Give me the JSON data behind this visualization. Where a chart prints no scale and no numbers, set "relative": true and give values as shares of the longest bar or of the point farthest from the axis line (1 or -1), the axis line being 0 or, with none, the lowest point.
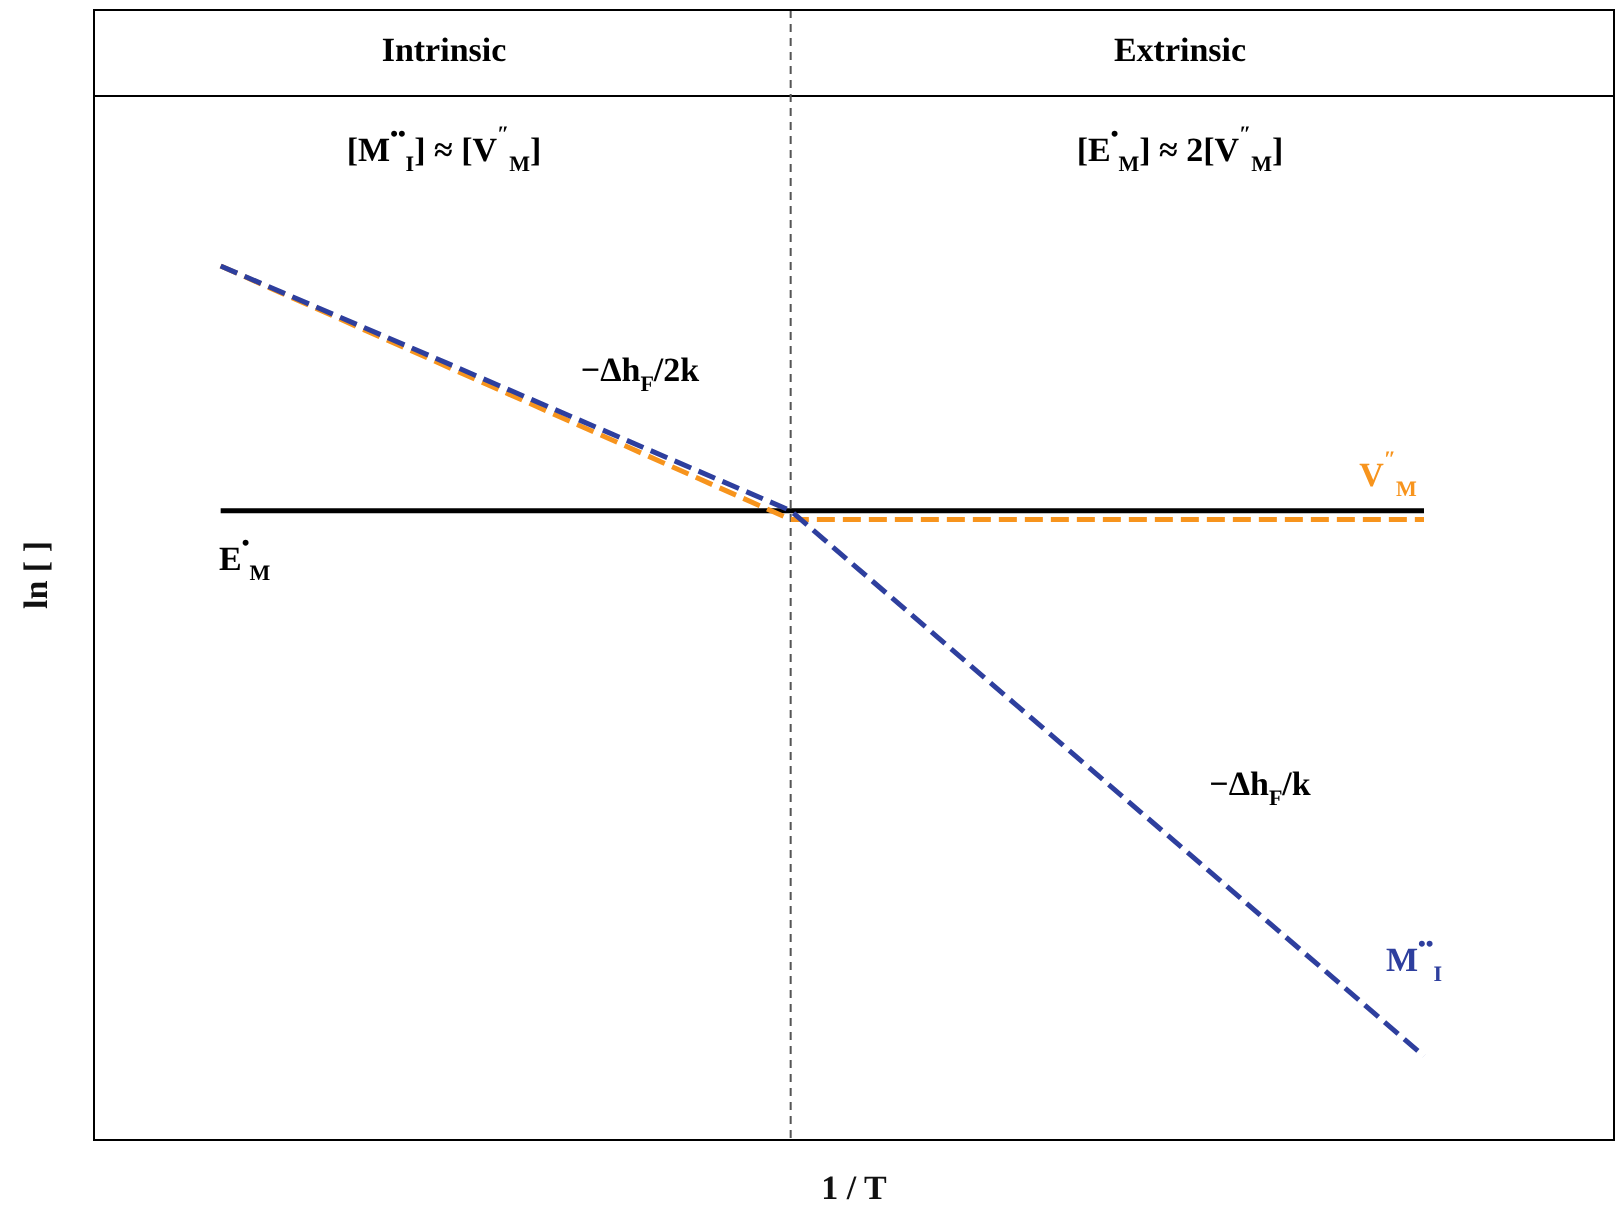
{
  "chart_data": {
    "type": "line",
    "relative": true,
    "xlabel": "1 / T",
    "ylabel": "ln [ ]",
    "tick_labels": false,
    "grid": false,
    "legend": false,
    "marker": "none",
    "categories": [
      null,
      null,
      null,
      null,
      null,
      null,
      null,
      null,
      null,
      null,
      null,
      null,
      null,
      null,
      null,
      null,
      null,
      null,
      null,
      null,
      null,
      null,
      null,
      null,
      null
    ],
    "series": [
      {
        "name": "E$^{•}$$_{M}$",
        "color": "#000000",
        "line_style": "solid",
        "values": [
          null,
          null,
          0.72,
          null,
          null,
          null,
          null,
          null,
          null,
          null,
          null,
          null,
          null,
          null,
          null,
          null,
          null,
          null,
          null,
          null,
          null,
          0.72,
          null,
          null,
          null
        ]
      },
      {
        "name": "V$^{″}$$_{M}$",
        "color": "#f7941d",
        "line_style": "dashed",
        "values": [
          null,
          null,
          1,
          null,
          null,
          null,
          null,
          null,
          null,
          null,
          null,
          0.71,
          null,
          null,
          null,
          null,
          null,
          null,
          null,
          null,
          null,
          0.71,
          null,
          null,
          null
        ]
      },
      {
        "name": "M$^{••}$$_{I}$",
        "color": "#2e3f9e",
        "line_style": "dashed",
        "values": [
          null,
          null,
          1,
          null,
          null,
          null,
          null,
          null,
          null,
          null,
          null,
          0.72,
          null,
          null,
          null,
          null,
          null,
          null,
          null,
          null,
          null,
          0.096,
          null,
          null,
          null
        ]
      }
    ],
    "annotations": [
      "Intrinsic",
      "Extrinsic",
      "[M$^{••}$$_{I}$] ≈ [V$^{″}$$_{M}$]",
      "[E$^{•}$$_{M}$] ≈ 2[V$^{″}$$_{M}$]",
      "−Δh$_{F}$/2k",
      "−Δh$_{F}$/k"
    ]
  }
}
